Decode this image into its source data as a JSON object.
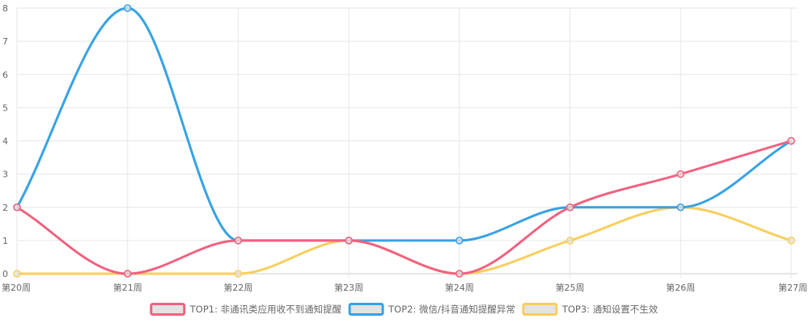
{
  "chart_data": {
    "type": "line",
    "categories": [
      "第20周",
      "第21周",
      "第22周",
      "第23周",
      "第24周",
      "第25周",
      "第26周",
      "第27周"
    ],
    "ylim": [
      0,
      8
    ],
    "yticks": [
      0,
      1,
      2,
      3,
      4,
      5,
      6,
      7,
      8
    ],
    "grid": true,
    "legend_position": "bottom",
    "series": [
      {
        "name": "TOP1: 非通讯类应用收不到通知提醒",
        "color": "#f0627f",
        "values": [
          2,
          0,
          1,
          1,
          0,
          2,
          3,
          4
        ]
      },
      {
        "name": "TOP2: 微信/抖音通知提醒异常",
        "color": "#36a2e4",
        "values": [
          2,
          8,
          1,
          1,
          1,
          2,
          2,
          4
        ]
      },
      {
        "name": "TOP3: 通知设置不生效",
        "color": "#f9ce5e",
        "values": [
          0,
          0,
          0,
          1,
          0,
          1,
          2,
          1
        ]
      }
    ]
  }
}
